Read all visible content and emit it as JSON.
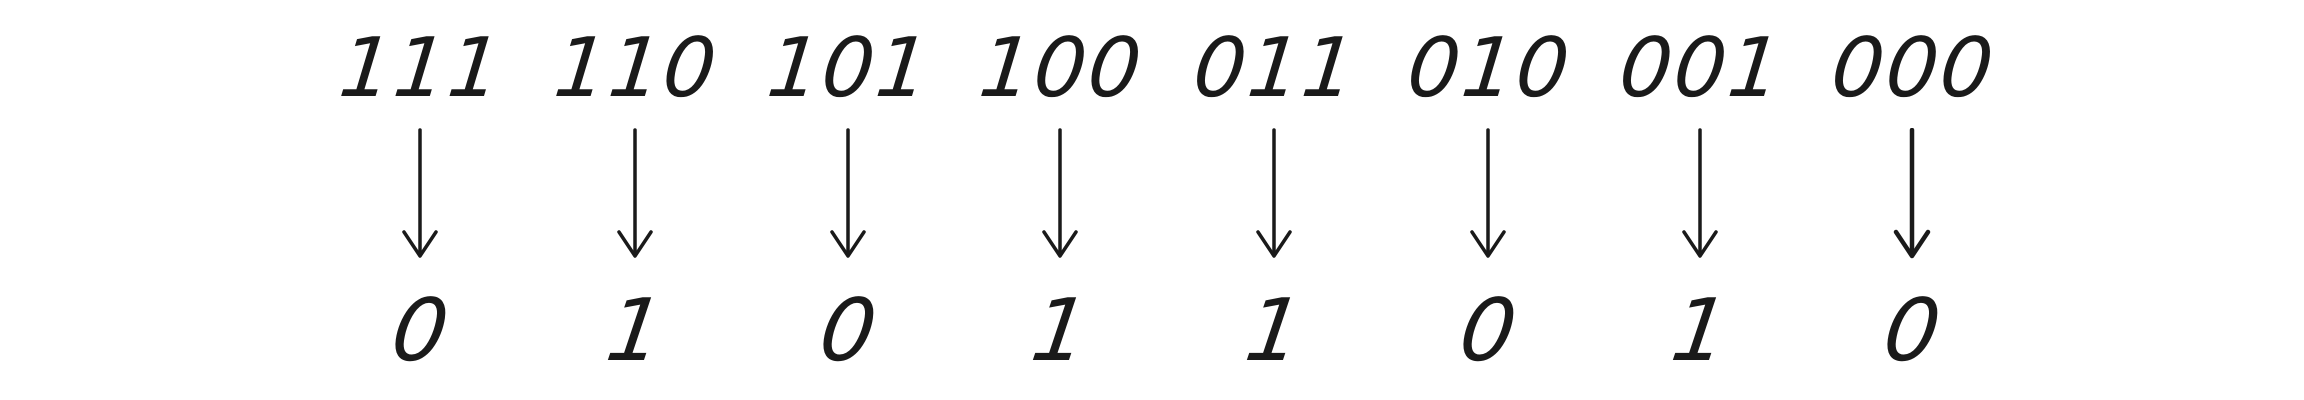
{
  "rule_table": [
    {
      "pattern": "111",
      "result": "0"
    },
    {
      "pattern": "110",
      "result": "1"
    },
    {
      "pattern": "101",
      "result": "0"
    },
    {
      "pattern": "100",
      "result": "1"
    },
    {
      "pattern": "011",
      "result": "1"
    },
    {
      "pattern": "010",
      "result": "0"
    },
    {
      "pattern": "001",
      "result": "1"
    },
    {
      "pattern": "000",
      "result": "0"
    }
  ],
  "colors": {
    "ink": "#1a1a1a",
    "background": "#ffffff"
  }
}
